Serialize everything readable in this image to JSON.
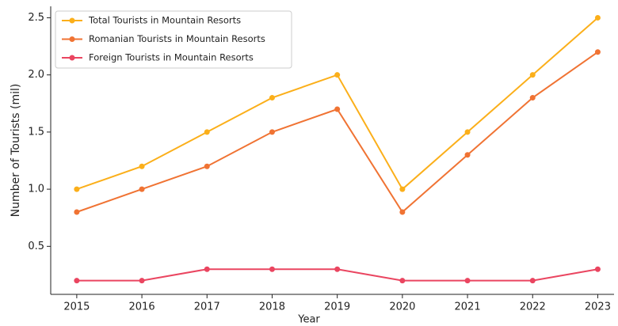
{
  "chart_data": {
    "type": "line",
    "x": [
      2015,
      2016,
      2017,
      2018,
      2019,
      2020,
      2021,
      2022,
      2023
    ],
    "series": [
      {
        "name": "Total Tourists in Mountain Resorts",
        "color": "#fbaf1a",
        "values": [
          1.0,
          1.2,
          1.5,
          1.8,
          2.0,
          1.0,
          1.5,
          2.0,
          2.5
        ]
      },
      {
        "name": "Romanian Tourists in Mountain Resorts",
        "color": "#f07333",
        "values": [
          0.8,
          1.0,
          1.2,
          1.5,
          1.7,
          0.8,
          1.3,
          1.8,
          2.2
        ]
      },
      {
        "name": "Foreign Tourists in Mountain Resorts",
        "color": "#ea4560",
        "values": [
          0.2,
          0.2,
          0.3,
          0.3,
          0.3,
          0.2,
          0.2,
          0.2,
          0.3
        ]
      }
    ],
    "xlabel": "Year",
    "ylabel": "Number of Tourists (mil)",
    "xlim": [
      2014.6,
      2023.25
    ],
    "xticks": [
      2015,
      2016,
      2017,
      2018,
      2019,
      2020,
      2021,
      2022,
      2023
    ],
    "ylim": [
      0.08,
      2.6
    ],
    "yticks": [
      0.5,
      {
        "value": 1,
        "label": "1.0"
      },
      1.5,
      {
        "value": 2,
        "label": "2.0"
      },
      2.5
    ],
    "legend": "upper left"
  }
}
